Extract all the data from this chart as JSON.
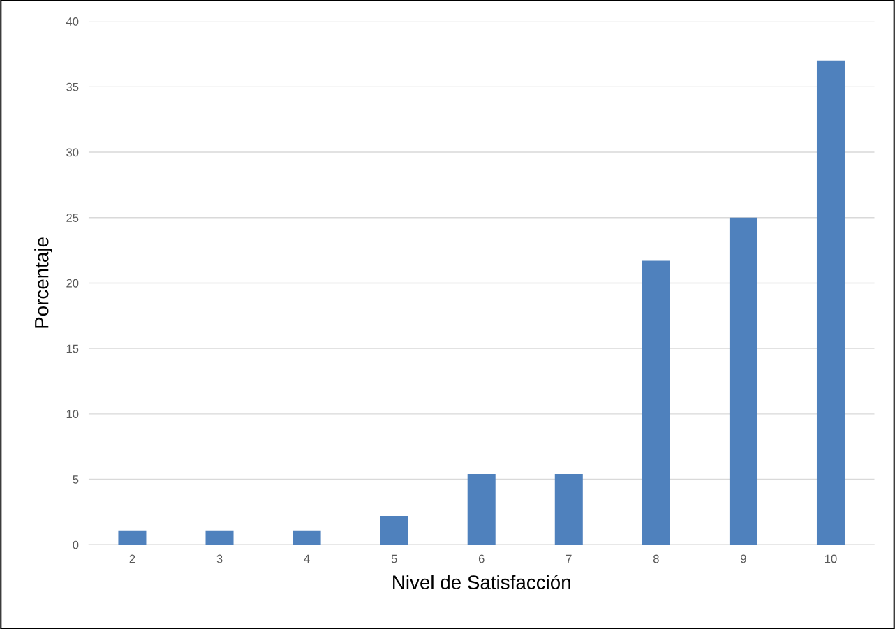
{
  "chart_data": {
    "type": "bar",
    "xlabel": "Nivel de Satisfacción",
    "ylabel": "Porcentaje",
    "categories": [
      "2",
      "3",
      "4",
      "5",
      "6",
      "7",
      "8",
      "9",
      "10"
    ],
    "values": [
      1.1,
      1.1,
      1.1,
      2.2,
      5.4,
      5.4,
      21.7,
      25,
      37.0
    ],
    "color": "#4f81bd",
    "ylim": [
      0,
      40
    ],
    "yticks": [
      0,
      5,
      10,
      15,
      20,
      25,
      30,
      35,
      40
    ],
    "grid": "y",
    "legend": false
  }
}
